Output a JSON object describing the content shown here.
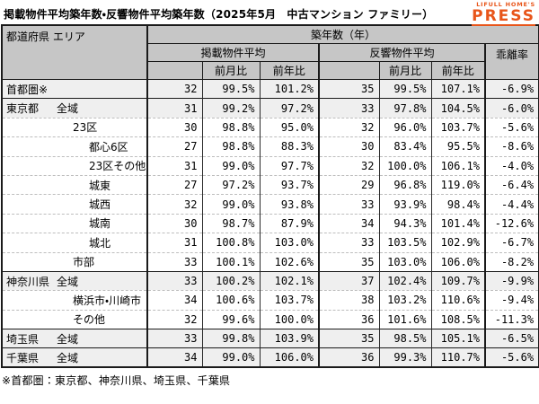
{
  "title": "掲載物件平均築年数・反響物件平均築年数（2025年5月　中古マンション ファミリー）",
  "logo": {
    "top": "LIFULL HOME'S",
    "main": "PRESS",
    "color": "#e8551a"
  },
  "table": {
    "headers": {
      "area": "都道府県 エリア",
      "age": "築年数（年）",
      "listed_group": "掲載物件平均",
      "response_group": "反響物件平均",
      "deviation": "乖離率",
      "mom": "前月比",
      "yoy": "前年比"
    },
    "rows": [
      {
        "area": "首都圏※",
        "suffix": "",
        "indent": 0,
        "shaded": true,
        "group_start": false,
        "listed_avg": "32",
        "listed_mom": "99.5%",
        "listed_yoy": "101.2%",
        "resp_avg": "35",
        "resp_mom": "99.5%",
        "resp_yoy": "107.1%",
        "deviation": "-6.9%"
      },
      {
        "area": "東京都",
        "suffix": "全域",
        "indent": 0,
        "shaded": true,
        "group_start": true,
        "listed_avg": "31",
        "listed_mom": "99.2%",
        "listed_yoy": "97.2%",
        "resp_avg": "33",
        "resp_mom": "97.8%",
        "resp_yoy": "104.5%",
        "deviation": "-6.0%"
      },
      {
        "area": "23区",
        "suffix": "",
        "indent": 1,
        "shaded": false,
        "group_start": false,
        "listed_avg": "30",
        "listed_mom": "98.8%",
        "listed_yoy": "95.0%",
        "resp_avg": "32",
        "resp_mom": "96.0%",
        "resp_yoy": "103.7%",
        "deviation": "-5.6%"
      },
      {
        "area": "都心6区",
        "suffix": "",
        "indent": 2,
        "shaded": false,
        "group_start": false,
        "listed_avg": "27",
        "listed_mom": "98.8%",
        "listed_yoy": "88.3%",
        "resp_avg": "30",
        "resp_mom": "83.4%",
        "resp_yoy": "95.5%",
        "deviation": "-8.6%"
      },
      {
        "area": "23区その他",
        "suffix": "",
        "indent": 2,
        "shaded": false,
        "group_start": false,
        "listed_avg": "31",
        "listed_mom": "99.0%",
        "listed_yoy": "97.7%",
        "resp_avg": "32",
        "resp_mom": "100.0%",
        "resp_yoy": "106.1%",
        "deviation": "-4.0%"
      },
      {
        "area": "城東",
        "suffix": "",
        "indent": 2,
        "shaded": false,
        "group_start": false,
        "listed_avg": "27",
        "listed_mom": "97.2%",
        "listed_yoy": "93.7%",
        "resp_avg": "29",
        "resp_mom": "96.8%",
        "resp_yoy": "119.0%",
        "deviation": "-6.4%"
      },
      {
        "area": "城西",
        "suffix": "",
        "indent": 2,
        "shaded": false,
        "group_start": false,
        "listed_avg": "32",
        "listed_mom": "99.0%",
        "listed_yoy": "93.8%",
        "resp_avg": "33",
        "resp_mom": "93.9%",
        "resp_yoy": "98.4%",
        "deviation": "-4.4%"
      },
      {
        "area": "城南",
        "suffix": "",
        "indent": 2,
        "shaded": false,
        "group_start": false,
        "listed_avg": "30",
        "listed_mom": "98.7%",
        "listed_yoy": "87.9%",
        "resp_avg": "34",
        "resp_mom": "94.3%",
        "resp_yoy": "101.4%",
        "deviation": "-12.6%"
      },
      {
        "area": "城北",
        "suffix": "",
        "indent": 2,
        "shaded": false,
        "group_start": false,
        "listed_avg": "31",
        "listed_mom": "100.8%",
        "listed_yoy": "103.0%",
        "resp_avg": "33",
        "resp_mom": "103.5%",
        "resp_yoy": "102.9%",
        "deviation": "-6.7%"
      },
      {
        "area": "市部",
        "suffix": "",
        "indent": 1,
        "shaded": false,
        "group_start": false,
        "listed_avg": "33",
        "listed_mom": "100.1%",
        "listed_yoy": "102.6%",
        "resp_avg": "35",
        "resp_mom": "103.0%",
        "resp_yoy": "106.0%",
        "deviation": "-8.2%"
      },
      {
        "area": "神奈川県",
        "suffix": "全域",
        "indent": 0,
        "shaded": true,
        "group_start": true,
        "listed_avg": "33",
        "listed_mom": "100.2%",
        "listed_yoy": "102.1%",
        "resp_avg": "37",
        "resp_mom": "102.4%",
        "resp_yoy": "109.7%",
        "deviation": "-9.9%"
      },
      {
        "area": "横浜市・川崎市",
        "suffix": "",
        "indent": 1,
        "shaded": false,
        "group_start": false,
        "listed_avg": "34",
        "listed_mom": "100.6%",
        "listed_yoy": "103.7%",
        "resp_avg": "38",
        "resp_mom": "103.2%",
        "resp_yoy": "110.6%",
        "deviation": "-9.4%"
      },
      {
        "area": "その他",
        "suffix": "",
        "indent": 1,
        "shaded": false,
        "group_start": false,
        "listed_avg": "32",
        "listed_mom": "99.6%",
        "listed_yoy": "100.0%",
        "resp_avg": "36",
        "resp_mom": "101.6%",
        "resp_yoy": "108.5%",
        "deviation": "-11.3%"
      },
      {
        "area": "埼玉県",
        "suffix": "全域",
        "indent": 0,
        "shaded": true,
        "group_start": true,
        "listed_avg": "33",
        "listed_mom": "99.8%",
        "listed_yoy": "103.9%",
        "resp_avg": "35",
        "resp_mom": "98.5%",
        "resp_yoy": "105.1%",
        "deviation": "-6.5%"
      },
      {
        "area": "千葉県",
        "suffix": "全域",
        "indent": 0,
        "shaded": true,
        "group_start": true,
        "listed_avg": "34",
        "listed_mom": "99.0%",
        "listed_yoy": "106.0%",
        "resp_avg": "36",
        "resp_mom": "99.3%",
        "resp_yoy": "110.7%",
        "deviation": "-5.6%"
      }
    ]
  },
  "footnote": "※首都圏：東京都、神奈川県、埼玉県、千葉県"
}
